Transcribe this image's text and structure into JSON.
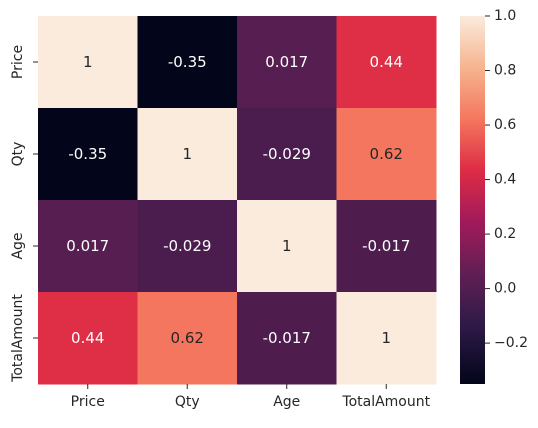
{
  "chart_data": {
    "type": "heatmap",
    "x_categories": [
      "Price",
      "Qty",
      "Age",
      "TotalAmount"
    ],
    "y_categories": [
      "Price",
      "Qty",
      "Age",
      "TotalAmount"
    ],
    "values": [
      [
        1,
        -0.35,
        0.017,
        0.44
      ],
      [
        -0.35,
        1,
        -0.029,
        0.62
      ],
      [
        0.017,
        -0.029,
        1,
        -0.017
      ],
      [
        0.44,
        0.62,
        -0.017,
        1
      ]
    ],
    "annotations": [
      [
        "1",
        "-0.35",
        "0.017",
        "0.44"
      ],
      [
        "-0.35",
        "1",
        "-0.029",
        "0.62"
      ],
      [
        "0.017",
        "-0.029",
        "1",
        "-0.017"
      ],
      [
        "0.44",
        "0.62",
        "-0.017",
        "1"
      ]
    ],
    "vmin": -0.35,
    "vmax": 1.0,
    "colorbar_ticks": [
      1.0,
      0.8,
      0.6,
      0.4,
      0.2,
      0.0,
      -0.2
    ],
    "colorbar_tick_labels": [
      "1.0",
      "0.8",
      "0.6",
      "0.4",
      "0.2",
      "0.0",
      "−0.2"
    ],
    "colormap": "rocket",
    "title": "",
    "xlabel": "",
    "ylabel": ""
  }
}
